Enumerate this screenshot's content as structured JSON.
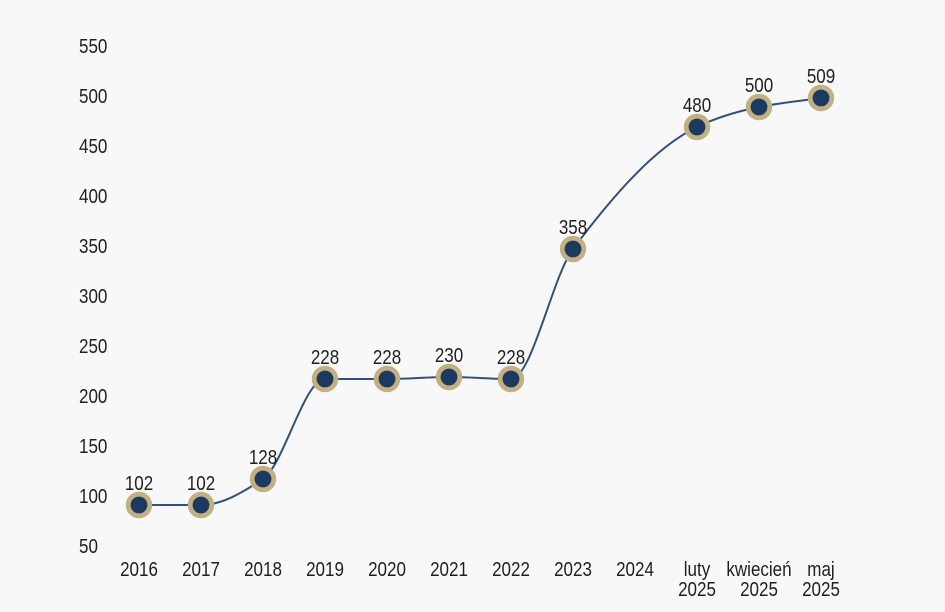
{
  "chart_data": {
    "type": "line",
    "title": "",
    "xlabel": "",
    "ylabel": "",
    "categories": [
      "2016",
      "2017",
      "2018",
      "2019",
      "2020",
      "2021",
      "2022",
      "2023",
      "2024",
      "luty 2025",
      "kwiecień 2025",
      "maj 2025"
    ],
    "x_tick_lines": [
      [
        "2016"
      ],
      [
        "2017"
      ],
      [
        "2018"
      ],
      [
        "2019"
      ],
      [
        "2020"
      ],
      [
        "2021"
      ],
      [
        "2022"
      ],
      [
        "2023"
      ],
      [
        "2024"
      ],
      [
        "luty",
        "2025"
      ],
      [
        "kwiecień",
        "2025"
      ],
      [
        "maj",
        "2025"
      ]
    ],
    "values": [
      102,
      102,
      128,
      228,
      228,
      230,
      228,
      358,
      null,
      480,
      500,
      509
    ],
    "series": [
      {
        "name": "series-1",
        "values": [
          102,
          102,
          128,
          228,
          228,
          230,
          228,
          358,
          null,
          480,
          500,
          509
        ]
      }
    ],
    "y_ticks": [
      550,
      500,
      450,
      400,
      350,
      300,
      250,
      200,
      150,
      100,
      50
    ],
    "ylim": [
      50,
      550
    ],
    "grid": false,
    "legend": false,
    "data_labels_shown": true,
    "colors": {
      "background": "#f8f8f8",
      "line": "#31507b",
      "marker_fill": "#1c3a5f",
      "marker_ring": "#c2b083",
      "text": "#1f1f1f"
    }
  }
}
